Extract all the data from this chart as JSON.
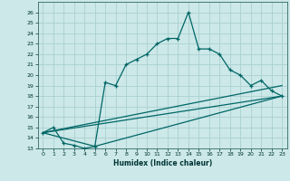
{
  "xlabel": "Humidex (Indice chaleur)",
  "background_color": "#cce8e8",
  "grid_color": "#aad0d0",
  "line_color": "#006666",
  "xlim": [
    -0.5,
    23.5
  ],
  "ylim": [
    13,
    27
  ],
  "xticks": [
    0,
    1,
    2,
    3,
    4,
    5,
    6,
    7,
    8,
    9,
    10,
    11,
    12,
    13,
    14,
    15,
    16,
    17,
    18,
    19,
    20,
    21,
    22,
    23
  ],
  "yticks": [
    13,
    14,
    15,
    16,
    17,
    18,
    19,
    20,
    21,
    22,
    23,
    24,
    25,
    26
  ],
  "line1_x": [
    0,
    1,
    2,
    3,
    4,
    5,
    6,
    7,
    8,
    9,
    10,
    11,
    12,
    13,
    14,
    15,
    16,
    17,
    18,
    19,
    20,
    21,
    22,
    23
  ],
  "line1_y": [
    14.5,
    15.0,
    13.5,
    13.3,
    13.0,
    13.2,
    19.3,
    19.0,
    21.0,
    21.5,
    22.0,
    23.0,
    23.5,
    23.5,
    26.0,
    22.5,
    22.5,
    22.0,
    20.5,
    20.0,
    19.0,
    19.5,
    18.5,
    18.0
  ],
  "line2_x": [
    0,
    23
  ],
  "line2_y": [
    14.5,
    18.0
  ],
  "line3_x": [
    0,
    5,
    23
  ],
  "line3_y": [
    14.5,
    13.2,
    18.0
  ],
  "line4_x": [
    0,
    23
  ],
  "line4_y": [
    14.5,
    19.0
  ]
}
